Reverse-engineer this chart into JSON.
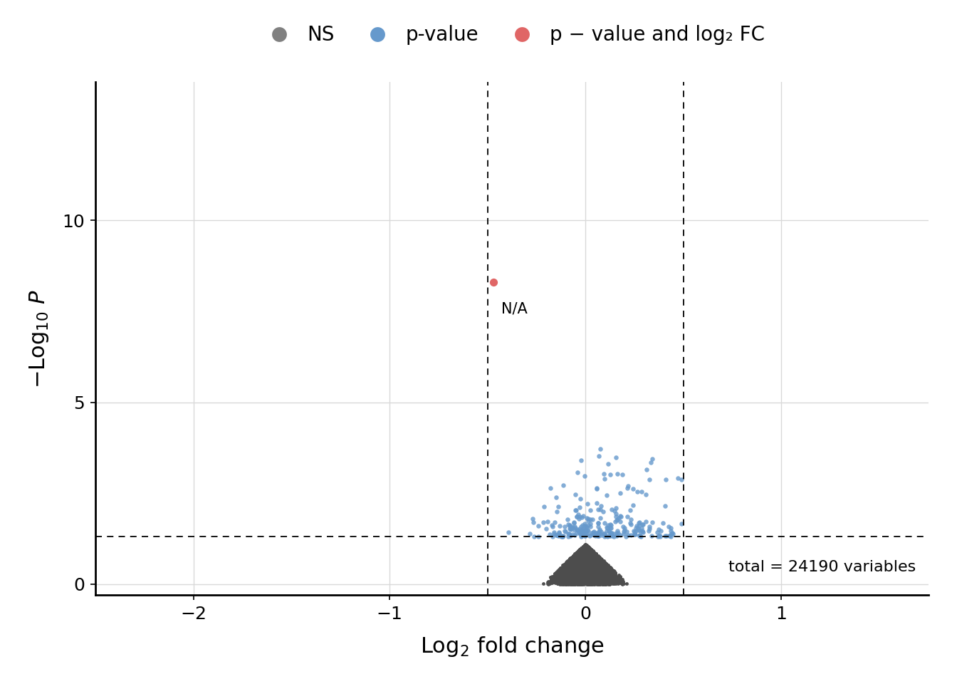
{
  "title": "",
  "xlabel": "Log$_2$ fold change",
  "ylabel": "$-$Log$_{10}$ $P$",
  "xlim": [
    -2.5,
    1.75
  ],
  "ylim": [
    -0.3,
    13.8
  ],
  "xticks": [
    -2,
    -1,
    0,
    1
  ],
  "yticks": [
    0,
    5,
    10
  ],
  "vline1": -0.5,
  "vline2": 0.5,
  "hline": 1.301,
  "legend_labels": [
    "NS",
    "p-value",
    "p − value and log₂ FC"
  ],
  "legend_colors": [
    "#808080",
    "#6699cc",
    "#e06666"
  ],
  "total_label": "total = 24190 variables",
  "red_point_x": -0.47,
  "red_point_y": 8.3,
  "red_label": "N/A",
  "background_color": "#ffffff",
  "grid_color": "#d9d9d9",
  "ns_color": "#4d4d4d",
  "blue_color": "#6699cc",
  "red_color": "#e06666",
  "seed": 42
}
